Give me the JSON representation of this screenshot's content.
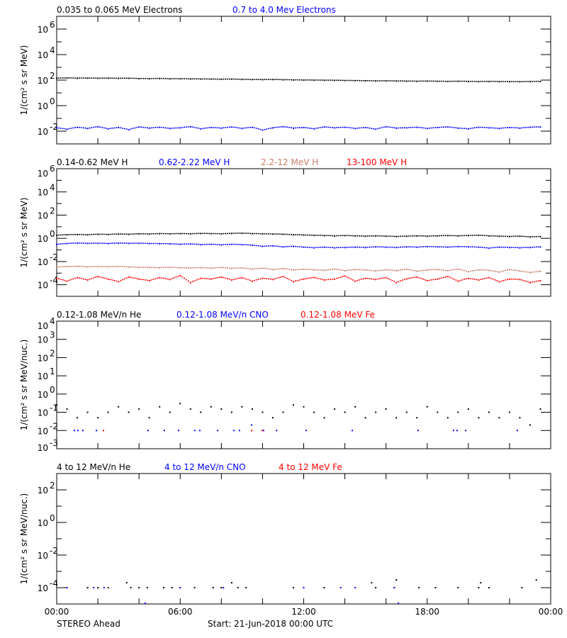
{
  "colors": {
    "black": "#000000",
    "blue": "#0000ff",
    "brown": "#c8806a",
    "red": "#ff0000"
  },
  "footer": {
    "left": "STEREO Ahead",
    "center": "Start: 21-Jun-2018 00:00 UTC"
  },
  "chart_data": [
    {
      "type": "scatter",
      "ylabel": "1/(cm² s sr MeV)",
      "yscale": "log",
      "ylim": [
        0.001,
        10000000.0
      ],
      "ytick_exponents": [
        6,
        4,
        2,
        0,
        -2
      ],
      "xlim_hours": [
        0,
        24
      ],
      "x_hours": [
        0,
        0.5,
        1,
        1.5,
        2,
        2.5,
        3,
        3.5,
        4,
        4.5,
        5,
        5.5,
        6,
        6.5,
        7,
        7.5,
        8,
        8.5,
        9,
        9.5,
        10,
        10.5,
        11,
        11.5,
        12,
        12.5,
        13,
        13.5,
        14,
        14.5,
        15,
        15.5,
        16,
        16.5,
        17,
        17.5,
        18,
        18.5,
        19,
        19.5,
        20,
        20.5,
        21,
        21.5,
        22,
        22.5,
        23,
        23.5
      ],
      "series": [
        {
          "name": "0.035 to 0.065 MeV Electrons",
          "color": "black",
          "values": [
            140,
            145,
            140,
            142,
            138,
            140,
            135,
            138,
            130,
            128,
            132,
            125,
            126,
            122,
            120,
            118,
            115,
            118,
            112,
            110,
            108,
            110,
            105,
            102,
            100,
            98,
            96,
            95,
            92,
            90,
            88,
            85,
            86,
            84,
            82,
            80,
            82,
            80,
            78,
            80,
            78,
            76,
            78,
            76,
            75,
            74,
            76,
            78
          ]
        },
        {
          "name": "0.7 to 4.0 Mev Electrons",
          "color": "blue",
          "values": [
            0.018,
            0.014,
            0.02,
            0.016,
            0.022,
            0.015,
            0.019,
            0.013,
            0.021,
            0.017,
            0.02,
            0.016,
            0.018,
            0.022,
            0.015,
            0.019,
            0.017,
            0.021,
            0.016,
            0.02,
            0.012,
            0.018,
            0.022,
            0.017,
            0.019,
            0.015,
            0.021,
            0.018,
            0.02,
            0.016,
            0.019,
            0.014,
            0.022,
            0.017,
            0.018,
            0.02,
            0.016,
            0.019,
            0.021,
            0.017,
            0.015,
            0.02,
            0.018,
            0.016,
            0.019,
            0.017,
            0.02,
            0.021
          ]
        }
      ]
    },
    {
      "type": "scatter",
      "ylabel": "1/(cm² s sr MeV)",
      "yscale": "log",
      "ylim": [
        1e-05,
        1000000.0
      ],
      "ytick_exponents": [
        6,
        4,
        2,
        0,
        -2,
        -4
      ],
      "xlim_hours": [
        0,
        24
      ],
      "x_hours": [
        0,
        0.5,
        1,
        1.5,
        2,
        2.5,
        3,
        3.5,
        4,
        4.5,
        5,
        5.5,
        6,
        6.5,
        7,
        7.5,
        8,
        8.5,
        9,
        9.5,
        10,
        10.5,
        11,
        11.5,
        12,
        12.5,
        13,
        13.5,
        14,
        14.5,
        15,
        15.5,
        16,
        16.5,
        17,
        17.5,
        18,
        18.5,
        19,
        19.5,
        20,
        20.5,
        21,
        21.5,
        22,
        22.5,
        23,
        23.5
      ],
      "series": [
        {
          "name": "0.14-0.62 MeV H",
          "color": "black",
          "values": [
            1.8,
            2.0,
            2.1,
            2.0,
            2.2,
            2.1,
            2.3,
            2.2,
            2.4,
            2.3,
            2.5,
            2.4,
            2.5,
            2.4,
            2.6,
            2.5,
            2.4,
            2.6,
            2.7,
            2.5,
            2.4,
            2.3,
            2.2,
            2.0,
            1.9,
            1.8,
            1.7,
            1.6,
            1.7,
            1.6,
            1.5,
            1.6,
            1.5,
            1.4,
            1.5,
            1.6,
            1.5,
            1.6,
            1.7,
            1.6,
            1.7,
            1.8,
            1.6,
            1.5,
            1.4,
            1.5,
            1.3,
            1.4
          ]
        },
        {
          "name": "0.62-2.22 MeV H",
          "color": "blue",
          "values": [
            0.3,
            0.35,
            0.38,
            0.36,
            0.37,
            0.35,
            0.38,
            0.36,
            0.37,
            0.35,
            0.34,
            0.33,
            0.3,
            0.32,
            0.28,
            0.3,
            0.27,
            0.3,
            0.28,
            0.25,
            0.2,
            0.22,
            0.18,
            0.2,
            0.17,
            0.15,
            0.17,
            0.15,
            0.16,
            0.17,
            0.16,
            0.18,
            0.17,
            0.16,
            0.18,
            0.17,
            0.19,
            0.18,
            0.17,
            0.19,
            0.18,
            0.17,
            0.14,
            0.17,
            0.16,
            0.15,
            0.16,
            0.18
          ]
        },
        {
          "name": "2.2-12 MeV H",
          "color": "brown",
          "values": [
            0.0032,
            0.0036,
            0.0038,
            0.0034,
            0.0036,
            0.0035,
            0.0037,
            0.0033,
            0.0031,
            0.003,
            0.0029,
            0.0031,
            0.0028,
            0.0027,
            0.0029,
            0.0026,
            0.003,
            0.0025,
            0.0027,
            0.0022,
            0.0026,
            0.002,
            0.0024,
            0.0018,
            0.0021,
            0.0019,
            0.0017,
            0.0022,
            0.0016,
            0.002,
            0.0018,
            0.0015,
            0.0019,
            0.0016,
            0.0021,
            0.0014,
            0.0018,
            0.002,
            0.0016,
            0.0022,
            0.0013,
            0.0019,
            0.0017,
            0.0012,
            0.002,
            0.0015,
            0.0011,
            0.0014
          ]
        },
        {
          "name": "13-100 MeV H",
          "color": "red",
          "values": [
            0.00035,
            0.0002,
            0.0004,
            0.00025,
            0.0005,
            0.0003,
            0.00018,
            0.00045,
            0.0003,
            0.00022,
            0.0004,
            0.00028,
            0.0006,
            0.00015,
            0.00035,
            0.0003,
            0.00045,
            0.00025,
            0.0004,
            0.0002,
            0.00035,
            0.00028,
            0.0005,
            0.00018,
            0.0003,
            0.00042,
            0.00025,
            0.0003,
            0.00055,
            0.0002,
            0.00035,
            0.00028,
            0.0004,
            0.00015,
            0.00032,
            0.00045,
            0.00022,
            0.0003,
            0.0005,
            0.0002,
            0.00035,
            0.00025,
            0.0004,
            0.00018,
            0.0003,
            0.00028,
            0.00015,
            0.00022
          ]
        }
      ]
    },
    {
      "type": "scatter",
      "ylabel": "1/(cm² s sr MeV/nuc.)",
      "yscale": "log",
      "ylim": [
        0.001,
        10000.0
      ],
      "ytick_exponents": [
        4,
        3,
        2,
        1,
        0,
        -1,
        -2,
        -3
      ],
      "xlim_hours": [
        0,
        24
      ],
      "series": [
        {
          "name": "0.12-1.08 MeV/n He",
          "color": "black",
          "points": [
            [
              0,
              0.25
            ],
            [
              0.5,
              0.15
            ],
            [
              1,
              0.05
            ],
            [
              1.5,
              0.1
            ],
            [
              2,
              0.05
            ],
            [
              2.5,
              0.1
            ],
            [
              3,
              0.2
            ],
            [
              3.5,
              0.1
            ],
            [
              4,
              0.15
            ],
            [
              4.5,
              0.05
            ],
            [
              5,
              0.2
            ],
            [
              5.5,
              0.1
            ],
            [
              6,
              0.3
            ],
            [
              6.5,
              0.15
            ],
            [
              7,
              0.1
            ],
            [
              7.5,
              0.2
            ],
            [
              8,
              0.15
            ],
            [
              8.5,
              0.1
            ],
            [
              9,
              0.2
            ],
            [
              9.5,
              0.15
            ],
            [
              10,
              0.1
            ],
            [
              10.5,
              0.05
            ],
            [
              11,
              0.1
            ],
            [
              11.5,
              0.25
            ],
            [
              12,
              0.2
            ],
            [
              12.5,
              0.1
            ],
            [
              13,
              0.05
            ],
            [
              13.5,
              0.15
            ],
            [
              14,
              0.1
            ],
            [
              14.5,
              0.2
            ],
            [
              15,
              0.05
            ],
            [
              15.5,
              0.1
            ],
            [
              16,
              0.15
            ],
            [
              16.5,
              0.05
            ],
            [
              17,
              0.1
            ],
            [
              17.5,
              0.05
            ],
            [
              18,
              0.2
            ],
            [
              18.5,
              0.1
            ],
            [
              19,
              0.05
            ],
            [
              19.5,
              0.1
            ],
            [
              20,
              0.15
            ],
            [
              20.5,
              0.05
            ],
            [
              21,
              0.1
            ],
            [
              21.5,
              0.05
            ],
            [
              22,
              0.1
            ],
            [
              22.5,
              0.05
            ],
            [
              23,
              0.02
            ],
            [
              23.5,
              0.15
            ]
          ]
        },
        {
          "name": "0.12-1.08 MeV/n CNO",
          "color": "blue",
          "points": [
            [
              0.86,
              0.01
            ],
            [
              1.03,
              0.01
            ],
            [
              1.27,
              0.01
            ],
            [
              1.93,
              0.01
            ],
            [
              4.44,
              0.01
            ],
            [
              5.23,
              0.01
            ],
            [
              5.92,
              0.01
            ],
            [
              6.71,
              0.01
            ],
            [
              6.95,
              0.01
            ],
            [
              7.82,
              0.01
            ],
            [
              8.61,
              0.01
            ],
            [
              8.88,
              0.01
            ],
            [
              9.47,
              0.02
            ],
            [
              10.05,
              0.01
            ],
            [
              10.68,
              0.01
            ],
            [
              12.12,
              0.01
            ],
            [
              14.36,
              0.01
            ],
            [
              17.56,
              0.01
            ],
            [
              19.28,
              0.01
            ],
            [
              19.45,
              0.01
            ],
            [
              19.87,
              0.01
            ],
            [
              22.38,
              0.01
            ]
          ]
        },
        {
          "name": "0.12-1.08 MeV Fe",
          "color": "red",
          "points": [
            [
              2.27,
              0.01
            ],
            [
              9.47,
              0.01
            ],
            [
              9.99,
              0.01
            ]
          ]
        }
      ]
    },
    {
      "type": "scatter",
      "ylabel": "1/(cm² s sr MeV/nuc.)",
      "yscale": "log",
      "ylim": [
        1e-05,
        1000.0
      ],
      "ytick_exponents": [
        2,
        0,
        -2,
        -4
      ],
      "xlim_hours": [
        0,
        24
      ],
      "xtick_labels": [
        "00:00",
        "06:00",
        "12:00",
        "18:00",
        "00:00"
      ],
      "series": [
        {
          "name": "4 to 12 MeV/n He",
          "color": "black",
          "points": [
            [
              1.5,
              0.0001
            ],
            [
              2.0,
              0.0001
            ],
            [
              2.5,
              0.0001
            ],
            [
              3.4,
              0.0002
            ],
            [
              3.6,
              0.0001
            ],
            [
              4.0,
              0.0001
            ],
            [
              4.4,
              0.0001
            ],
            [
              5.2,
              0.0001
            ],
            [
              5.6,
              0.0001
            ],
            [
              6.7,
              0.0001
            ],
            [
              7.6,
              0.0001
            ],
            [
              8.0,
              0.0001
            ],
            [
              8.5,
              0.0002
            ],
            [
              8.8,
              0.0001
            ],
            [
              9.2,
              0.0001
            ],
            [
              11.5,
              0.0001
            ],
            [
              13.0,
              0.0001
            ],
            [
              15.3,
              0.0002
            ],
            [
              15.5,
              0.0001
            ],
            [
              16.4,
              0.0001
            ],
            [
              16.5,
              0.0003
            ],
            [
              17.6,
              0.0001
            ],
            [
              18.4,
              0.0001
            ],
            [
              19.5,
              0.0001
            ],
            [
              20.5,
              0.0001
            ],
            [
              20.6,
              0.0002
            ],
            [
              21.0,
              0.0001
            ],
            [
              22.6,
              0.0001
            ],
            [
              23.3,
              0.0003
            ]
          ]
        },
        {
          "name": "4 to 12 MeV/n CNO",
          "color": "blue",
          "points": [
            [
              0.5,
              0.0001
            ],
            [
              1.8,
              0.0001
            ],
            [
              2.3,
              0.0001
            ],
            [
              4.3,
              1.1e-05
            ],
            [
              6.0,
              0.0001
            ],
            [
              8.1,
              0.0001
            ],
            [
              12.0,
              0.0001
            ],
            [
              13.8,
              0.0001
            ],
            [
              14.5,
              0.0001
            ],
            [
              16.4,
              0.0001
            ],
            [
              16.6,
              1.1e-05
            ]
          ]
        },
        {
          "name": "4 to 12 MeV Fe",
          "color": "red",
          "points": []
        }
      ]
    }
  ]
}
